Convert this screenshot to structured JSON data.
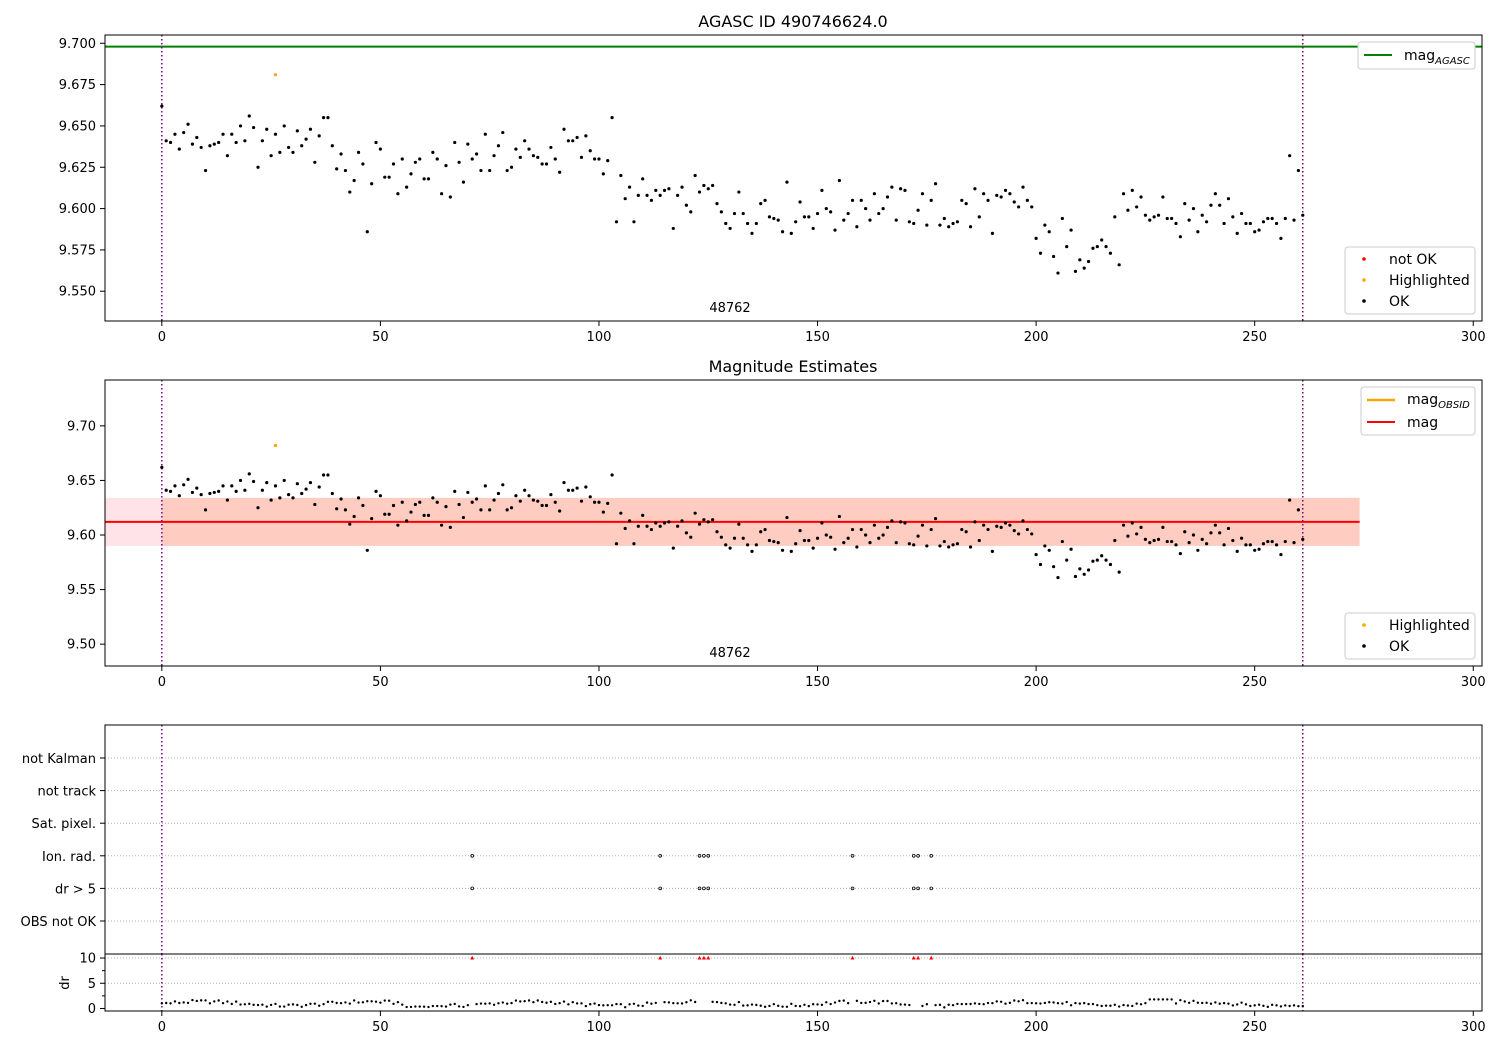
{
  "colors": {
    "ok": "#000000",
    "highlighted": "#ffa500",
    "not_ok": "#ff0000",
    "mag_agasc_line": "#008000",
    "mag_line": "#ff0000",
    "mag_obsid_line": "#ffa500",
    "band_outer": "#ffc0cb",
    "band_inner": "#ffa07a",
    "obs_boundary": "#800080",
    "grid": "#b0b0b0"
  },
  "chart_data": [
    {
      "id": "top",
      "type": "scatter",
      "title": "AGASC ID 490746624.0",
      "xlim": [
        -13,
        302
      ],
      "ylim": [
        9.532,
        9.705
      ],
      "xticks": [
        "0",
        "50",
        "100",
        "150",
        "200",
        "250",
        "300"
      ],
      "yticks": [
        "9.550",
        "9.575",
        "9.600",
        "9.625",
        "9.650",
        "9.675",
        "9.700"
      ],
      "obsid_text": "48762",
      "obsid_boundaries": [
        0,
        261
      ],
      "mag_agasc": 9.698,
      "legend_lines": [
        {
          "name": "mag",
          "sub": "AGASC",
          "color": "#008000"
        }
      ],
      "legend_points": [
        "not OK",
        "Highlighted",
        "OK"
      ],
      "highlighted_points": [
        {
          "x": 26,
          "y": 9.681
        }
      ]
    },
    {
      "id": "middle",
      "type": "scatter",
      "title": "Magnitude Estimates",
      "xlim": [
        -13,
        302
      ],
      "ylim": [
        9.48,
        9.742
      ],
      "xticks": [
        "0",
        "50",
        "100",
        "150",
        "200",
        "250",
        "300"
      ],
      "yticks": [
        "9.50",
        "9.55",
        "9.60",
        "9.65",
        "9.70"
      ],
      "obsid_text": "48762",
      "obsid_boundaries": [
        0,
        261
      ],
      "mag": 9.612,
      "mag_band_outer": [
        9.59,
        9.634
      ],
      "mag_band_inner_x": [
        0,
        274
      ],
      "mag_band_outer_x": [
        -13,
        274
      ],
      "legend_lines": [
        {
          "name": "mag",
          "sub": "OBSID",
          "color": "#ffa500"
        },
        {
          "name": "mag",
          "sub": "",
          "color": "#ff0000"
        }
      ],
      "legend_points": [
        "Highlighted",
        "OK"
      ],
      "highlighted_points": [
        {
          "x": 26,
          "y": 9.682
        }
      ]
    },
    {
      "id": "flags",
      "type": "scatter",
      "xlim": [
        -13,
        302
      ],
      "categories": [
        "not Kalman",
        "not track",
        "Sat. pixel.",
        "Ion. rad.",
        "dr > 5",
        "OBS not OK"
      ],
      "flagged_x": [
        71,
        114,
        123,
        124,
        125,
        158,
        172,
        173,
        176
      ],
      "obsid_boundaries": [
        0,
        261
      ]
    },
    {
      "id": "dr",
      "type": "scatter",
      "ylabel": "dr",
      "xlim": [
        -13,
        302
      ],
      "ylim": [
        -0.5,
        10.8
      ],
      "xticks": [
        "0",
        "50",
        "100",
        "150",
        "200",
        "250",
        "300"
      ],
      "yticks": [
        "0",
        "5",
        "10"
      ],
      "obsid_boundaries": [
        0,
        261
      ]
    }
  ]
}
